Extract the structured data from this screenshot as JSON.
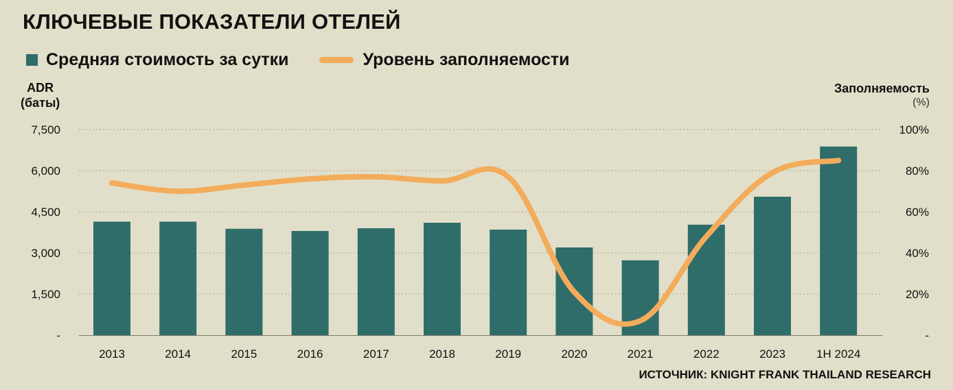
{
  "header": {
    "title": "КЛЮЧЕВЫЕ ПОКАЗАТЕЛИ ОТЕЛЕЙ"
  },
  "legend": {
    "items": [
      {
        "label": "Средняя стоимость за сутки",
        "kind": "bar",
        "color": "#2e6d69"
      },
      {
        "label": "Уровень заполняемости",
        "kind": "line",
        "color": "#f3ac5b"
      }
    ]
  },
  "axes": {
    "left_title_line1": "ADR",
    "left_title_line2": "(баты)",
    "right_title": "Заполняемость",
    "right_unit": "(%)"
  },
  "footer": {
    "source": "ИСТОЧНИК: KNIGHT FRANK THAILAND RESEARCH"
  },
  "chart_data": {
    "type": "bar",
    "categories": [
      "2013",
      "2014",
      "2015",
      "2016",
      "2017",
      "2018",
      "2019",
      "2020",
      "2021",
      "2022",
      "2023",
      "1H 2024"
    ],
    "series": [
      {
        "name": "Средняя стоимость за сутки",
        "type": "bar",
        "axis": "left",
        "color": "#2e6d69",
        "values": [
          4140,
          4140,
          3880,
          3800,
          3900,
          4100,
          3850,
          3200,
          2730,
          4030,
          5050,
          6880
        ]
      },
      {
        "name": "Уровень заполняемости",
        "type": "line",
        "axis": "right",
        "color": "#f3ac5b",
        "values": [
          74,
          70,
          73,
          76,
          77,
          75,
          77,
          21,
          7,
          48,
          79,
          85
        ]
      }
    ],
    "y_left": {
      "range": [
        0,
        7500
      ],
      "ticks": [
        0,
        1500,
        3000,
        4500,
        6000,
        7500
      ],
      "tick_labels": [
        "-",
        "1,500",
        "3,000",
        "4,500",
        "6,000",
        "7,500"
      ]
    },
    "y_right": {
      "range": [
        0,
        100
      ],
      "ticks": [
        0,
        20,
        40,
        60,
        80,
        100
      ],
      "tick_labels": [
        "-",
        "20%",
        "40%",
        "60%",
        "80%",
        "100%"
      ]
    },
    "grid": "horizontal-dashed",
    "legend_position": "top-left"
  }
}
